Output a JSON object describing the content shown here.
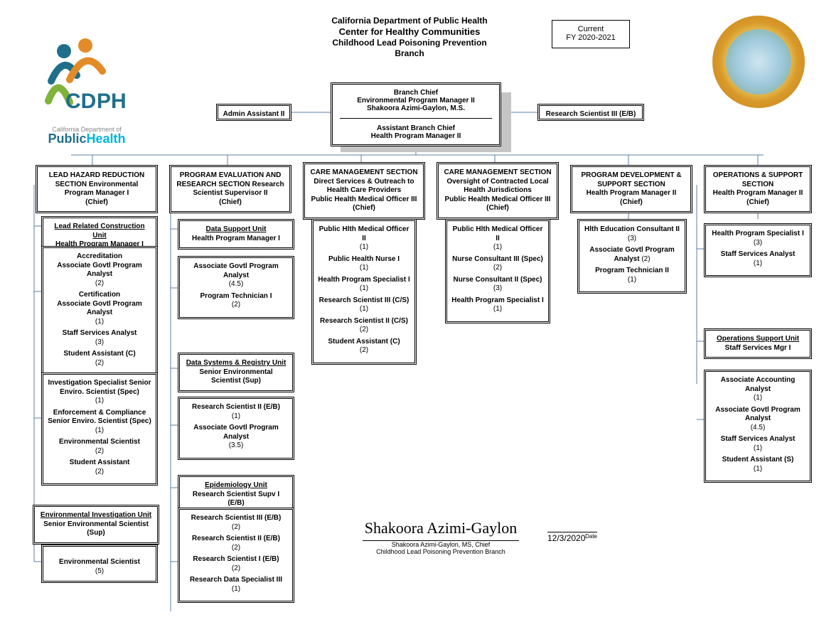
{
  "header": {
    "line1": "California Department of Public Health",
    "line2": "Center for Healthy Communities",
    "line3": "Childhood Lead Poisoning Prevention",
    "line4": "Branch"
  },
  "fy": {
    "l1": "Current",
    "l2": "FY 2020-2021"
  },
  "logo": {
    "dept": "California Department of",
    "pub": "Public",
    "health": "Health"
  },
  "chief": {
    "title": "Branch Chief",
    "role": "Environmental Program Manager II",
    "name": "Shakoora Azimi-Gaylon, M.S.",
    "asst_title": "Assistant Branch Chief",
    "asst_role": "Health Program Manager II"
  },
  "side_left": "Admin Assistant II",
  "side_right": "Research Scientist III (E/B)",
  "sections": {
    "s1": {
      "name": "LEAD HAZARD REDUCTION SECTION",
      "role": "Environmental Program Manager I",
      "chief": "(Chief)"
    },
    "s2": {
      "name": "PROGRAM EVALUATION AND RESEARCH SECTION",
      "role": "Research Scientist Supervisor II",
      "chief": "(Chief)"
    },
    "s3": {
      "name": "CARE MANAGEMENT SECTION",
      "sub": "Direct Services & Outreach to Health Care Providers",
      "role": "Public Health Medical Officer III",
      "chief": "(Chief)"
    },
    "s4": {
      "name": "CARE MANAGEMENT SECTION",
      "sub": "Oversight of Contracted Local Health Jurisdictions",
      "role": "Public Health Medical Officer III",
      "chief": "(Chief)"
    },
    "s5": {
      "name": "PROGRAM DEVELOPMENT & SUPPORT SECTION",
      "role": "Health Program Manager II",
      "chief": "(Chief)"
    },
    "s6": {
      "name": "OPERATIONS & SUPPORT SECTION",
      "role": "Health Program Manager II",
      "chief": "(Chief)"
    }
  },
  "c1": {
    "u1": {
      "head": "Lead Related Construction Unit",
      "sub": "Health Program Manager I"
    },
    "b1": [
      {
        "r": "Accreditation",
        "r2": "Associate Govtl Program Analyst",
        "c": "(2)"
      },
      {
        "r": "Certification",
        "r2": "Associate Govtl Program Analyst",
        "c": "(1)"
      },
      {
        "r": "Staff Services Analyst",
        "c": "(3)"
      },
      {
        "r": "Student Assistant (C)",
        "c": "(2)"
      }
    ],
    "b2": [
      {
        "r": "Investigation Specialist Senior Enviro. Scientist (Spec)",
        "c": "(1)"
      },
      {
        "r": "Enforcement & Compliance Senior Enviro. Scientist (Spec)",
        "c": "(1)"
      },
      {
        "r": "Environmental Scientist",
        "c": "(2)"
      },
      {
        "r": "Student Assistant",
        "c": "(2)"
      }
    ],
    "u2": {
      "head": "Environmental Investigation Unit",
      "sub": "Senior Environmental Scientist (Sup)"
    },
    "b3": [
      {
        "r": "Environmental Scientist",
        "c": "(5)"
      }
    ]
  },
  "c2": {
    "u1": {
      "head": "Data Support Unit",
      "sub": "Health Program Manager I"
    },
    "b1": [
      {
        "r": "Associate Govtl Program Analyst",
        "c": "(4.5)"
      },
      {
        "r": "Program Technician I",
        "c": "(2)"
      }
    ],
    "u2": {
      "head": "Data Systems & Registry Unit",
      "sub": "Senior Environmental Scientist (Sup)"
    },
    "b2": [
      {
        "r": "Research Scientist II (E/B)",
        "c": "(1)"
      },
      {
        "r": "Associate Govtl Program Analyst",
        "c": "(3.5)"
      }
    ],
    "u3": {
      "head": "Epidemiology Unit",
      "sub": "Research Scientist Supv I (E/B)"
    },
    "b3": [
      {
        "r": "Research Scientist III (E/B)",
        "c": "(2)"
      },
      {
        "r": "Research Scientist II (E/B)",
        "c": "(2)"
      },
      {
        "r": "Research Scientist I (E/B)",
        "c": "(2)"
      },
      {
        "r": "Research Data Specialist III",
        "c": "(1)"
      }
    ]
  },
  "c3": [
    {
      "r": "Public Hlth Medical Officer II",
      "c": "(1)"
    },
    {
      "r": "Public Health Nurse I",
      "c": "(1)"
    },
    {
      "r": "Health Program Specialist I",
      "c": "(1)"
    },
    {
      "r": "Research Scientist III (C/S)",
      "c": "(1)"
    },
    {
      "r": "Research Scientist II (C/S)",
      "c": "(2)"
    },
    {
      "r": "Student Assistant (C)",
      "c": "(2)"
    }
  ],
  "c4": [
    {
      "r": "Public Hlth Medical Officer II",
      "c": "(1)"
    },
    {
      "r": "Nurse Consultant III (Spec)",
      "c": "(2)"
    },
    {
      "r": "Nurse Consultant II (Spec)",
      "c2": "(3)"
    },
    {
      "r": "Health Program Specialist I",
      "c": "(1)"
    }
  ],
  "c5": [
    {
      "r": "Hlth Education Consultant II",
      "c": "(3)"
    },
    {
      "r": "Associate Govtl Program Analyst",
      "c2": " (2)"
    },
    {
      "r": "Program Technician II",
      "c": "(1)"
    }
  ],
  "c6": {
    "b1": [
      {
        "r": "Health Program Specialist I",
        "c": "(3)"
      },
      {
        "r": "Staff Services Analyst",
        "c": "(1)"
      }
    ],
    "u1": {
      "head": "Operations Support Unit",
      "sub": "Staff Services Mgr I"
    },
    "b2": [
      {
        "r": "Associate Accounting Analyst",
        "c": "(1)"
      },
      {
        "r": "Associate Govtl Program Analyst",
        "c": "(4.5)"
      },
      {
        "r": "Staff Services Analyst",
        "c": "(1)"
      },
      {
        "r": "Student Assistant (S)",
        "c": "(1)"
      }
    ]
  },
  "sig": {
    "script": "Shakoora Azimi-Gaylon",
    "name": "Shakoora Azimi-Gaylon, MS, Chief",
    "title": "Childhood Lead Poisoning Prevention Branch",
    "date": "12/3/2020",
    "date_lbl": "Date"
  },
  "colors": {
    "line": "#5b7fa6",
    "bg": "#ffffff",
    "cdph_blue": "#1f6f8b",
    "cdph_teal": "#00b4d8"
  }
}
